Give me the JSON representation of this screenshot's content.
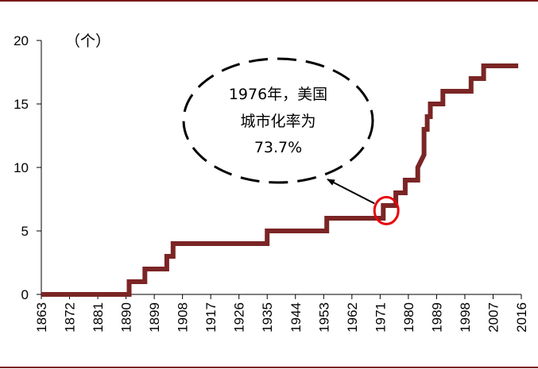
{
  "theme": {
    "frame_color": "#7b1a1a",
    "line_color": "#7b2525",
    "highlight_color": "#e8000b",
    "axis_color": "#000000"
  },
  "chart_data": {
    "type": "line",
    "title": "",
    "xlabel": "",
    "ylabel": "（个）",
    "xlim": [
      1863,
      2016
    ],
    "ylim": [
      0,
      20
    ],
    "y_ticks": [
      "0",
      "5",
      "10",
      "15",
      "20"
    ],
    "x_ticks": [
      "1863",
      "1872",
      "1881",
      "1890",
      "1899",
      "1908",
      "1917",
      "1926",
      "1935",
      "1944",
      "1953",
      "1962",
      "1971",
      "1980",
      "1989",
      "1998",
      "2007",
      "2016"
    ],
    "step": true,
    "grid": false,
    "legend": "none",
    "series": [
      {
        "x": [
          1863,
          1891,
          1891,
          1896,
          1896,
          1903,
          1903,
          1905,
          1905,
          1935,
          1935,
          1954,
          1954,
          1972,
          1972,
          1976,
          1976,
          1979,
          1979,
          1983,
          1983,
          1985,
          1985,
          1986,
          1986,
          1987,
          1987,
          1988,
          1988,
          1991,
          1991,
          2000,
          2000,
          2004,
          2004,
          2015
        ],
        "y": [
          0,
          0,
          1,
          1,
          2,
          2,
          3,
          3,
          4,
          4,
          5,
          5,
          6,
          6,
          7,
          7,
          8,
          8,
          9,
          9,
          10,
          11,
          13,
          13,
          14,
          14,
          15,
          15,
          15,
          15,
          16,
          16,
          17,
          17,
          18,
          18
        ]
      }
    ],
    "annotation": {
      "lines": [
        "1976年，美国",
        "城市化率为",
        "73.7%"
      ],
      "highlight_x": 1973,
      "highlight_y": 6.6
    }
  }
}
